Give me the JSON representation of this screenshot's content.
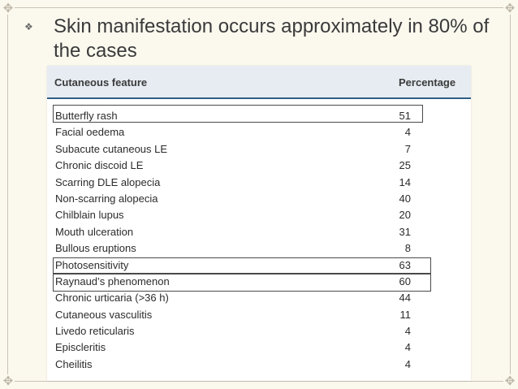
{
  "slide": {
    "bullet_icon": "diamond-bullet-icon",
    "title": "Skin manifestation occurs approximately in 80% of the cases"
  },
  "table": {
    "header": {
      "feature": "Cutaneous feature",
      "percentage": "Percentage"
    },
    "rows": [
      {
        "feature": "Butterfly rash",
        "value": "51",
        "highlighted": true
      },
      {
        "feature": "Facial oedema",
        "value": "4",
        "highlighted": false
      },
      {
        "feature": "Subacute cutaneous LE",
        "value": "7",
        "highlighted": false
      },
      {
        "feature": "Chronic discoid LE",
        "value": "25",
        "highlighted": false
      },
      {
        "feature": "Scarring DLE alopecia",
        "value": "14",
        "highlighted": false
      },
      {
        "feature": "Non-scarring alopecia",
        "value": "40",
        "highlighted": false
      },
      {
        "feature": "Chilblain lupus",
        "value": "20",
        "highlighted": false
      },
      {
        "feature": "Mouth ulceration",
        "value": "31",
        "highlighted": false
      },
      {
        "feature": "Bullous eruptions",
        "value": "8",
        "highlighted": false
      },
      {
        "feature": "Photosensitivity",
        "value": "63",
        "highlighted": true
      },
      {
        "feature": "Raynaud’s phenomenon",
        "value": "60",
        "highlighted": true
      },
      {
        "feature": "Chronic urticaria (>36 h)",
        "value": "44",
        "highlighted": false
      },
      {
        "feature": "Cutaneous vasculitis",
        "value": "11",
        "highlighted": false
      },
      {
        "feature": "Livedo reticularis",
        "value": "4",
        "highlighted": false
      },
      {
        "feature": "Episcleritis",
        "value": "4",
        "highlighted": false
      },
      {
        "feature": "Cheilitis",
        "value": "4",
        "highlighted": false
      }
    ]
  }
}
